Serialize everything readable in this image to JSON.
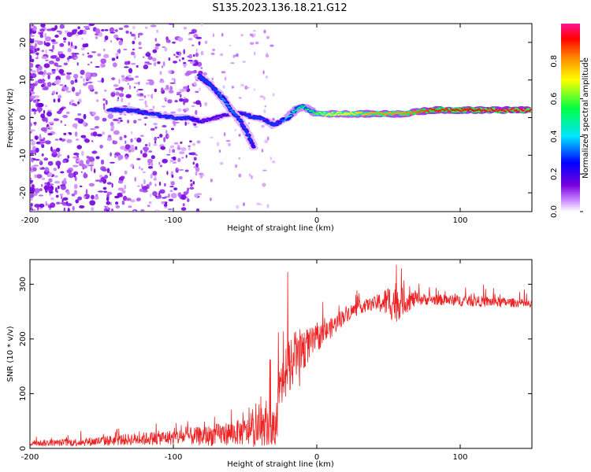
{
  "title": "S135.2023.136.18.21.G12",
  "chart_data": [
    {
      "type": "heatmap",
      "xlabel": "Height of straight line (km)",
      "ylabel": "Frequency (Hz)",
      "xlim": [
        -200,
        150
      ],
      "ylim": [
        -25,
        25
      ],
      "xticks": [
        -200,
        -100,
        0,
        100
      ],
      "yticks": [
        -20,
        -10,
        0,
        10,
        20
      ],
      "colorbar": {
        "label": "Normalized spectral amplitude",
        "range": [
          0.0,
          1.0
        ],
        "ticks": [
          0.0,
          0.2,
          0.4,
          0.6,
          0.8
        ],
        "colors": [
          "#ffffff",
          "#cc88ff",
          "#7700dd",
          "#0000ff",
          "#00e5ff",
          "#00ff44",
          "#ffff00",
          "#ff8800",
          "#ff0000",
          "#ff1493"
        ]
      },
      "ridge": {
        "x": [
          -145,
          -130,
          -115,
          -100,
          -90,
          -80,
          -70,
          -60,
          -50,
          -45,
          -40,
          -30,
          -25,
          -20,
          -15,
          -10,
          -5,
          0,
          10,
          20,
          40,
          60,
          80,
          100,
          120,
          150
        ],
        "y": [
          2,
          2,
          1,
          0,
          0,
          -1,
          0,
          1,
          1,
          0,
          0,
          -2,
          -1,
          0,
          2,
          3,
          2,
          1,
          1,
          1,
          1,
          1,
          2,
          2,
          2,
          2
        ],
        "amplitude": [
          0.3,
          0.3,
          0.3,
          0.3,
          0.3,
          0.2,
          0.2,
          0.2,
          0.3,
          0.3,
          0.3,
          0.3,
          0.3,
          0.4,
          0.5,
          0.5,
          0.5,
          0.6,
          0.7,
          0.7,
          0.8,
          0.8,
          0.9,
          0.9,
          0.95,
          0.95
        ]
      },
      "branch": {
        "x": [
          -82,
          -75,
          -70,
          -65,
          -60,
          -55,
          -50,
          -46,
          -44
        ],
        "y": [
          11,
          9,
          7,
          5,
          2,
          0,
          -3,
          -6,
          -8
        ],
        "amplitude": [
          0.3,
          0.3,
          0.3,
          0.35,
          0.35,
          0.3,
          0.3,
          0.3,
          0.25
        ]
      }
    },
    {
      "type": "line",
      "xlabel": "Height of straight line (km)",
      "ylabel": "SNR (10 * v/v)",
      "xlim": [
        -200,
        150
      ],
      "ylim": [
        0,
        345
      ],
      "xticks": [
        -200,
        -100,
        0,
        100
      ],
      "yticks": [
        0,
        100,
        200,
        300
      ],
      "color": "#ee2222",
      "envelope": {
        "x": [
          -200,
          -180,
          -160,
          -140,
          -120,
          -100,
          -90,
          -80,
          -70,
          -60,
          -50,
          -45,
          -40,
          -35,
          -30,
          -28,
          -25,
          -22,
          -20,
          -15,
          -10,
          -5,
          0,
          5,
          10,
          20,
          30,
          40,
          50,
          55,
          60,
          70,
          80,
          100,
          120,
          140,
          150
        ],
        "y": [
          10,
          10,
          12,
          15,
          18,
          20,
          22,
          22,
          25,
          28,
          30,
          30,
          35,
          35,
          40,
          60,
          100,
          130,
          150,
          170,
          180,
          190,
          200,
          210,
          220,
          245,
          258,
          265,
          268,
          268,
          268,
          273,
          272,
          270,
          268,
          266,
          262
        ],
        "noise": [
          6,
          6,
          8,
          10,
          12,
          14,
          16,
          18,
          20,
          22,
          25,
          28,
          30,
          30,
          32,
          60,
          60,
          60,
          50,
          45,
          40,
          30,
          25,
          20,
          18,
          15,
          12,
          12,
          30,
          40,
          25,
          12,
          10,
          10,
          10,
          8,
          8
        ]
      }
    }
  ]
}
